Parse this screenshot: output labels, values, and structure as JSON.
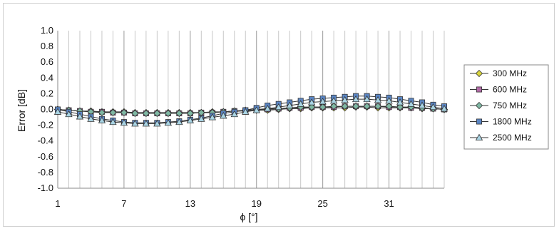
{
  "chart_data": {
    "type": "line",
    "title": "",
    "xlabel": "ϕ [°]",
    "ylabel": "Error [dB]",
    "x": [
      1,
      2,
      3,
      4,
      5,
      6,
      7,
      8,
      9,
      10,
      11,
      12,
      13,
      14,
      15,
      16,
      17,
      18,
      19,
      20,
      21,
      22,
      23,
      24,
      25,
      26,
      27,
      28,
      29,
      30,
      31,
      32,
      33,
      34,
      35,
      36
    ],
    "xlim": [
      1,
      36
    ],
    "xticks": [
      1,
      7,
      13,
      19,
      25,
      31
    ],
    "ylim": [
      -1.0,
      1.0
    ],
    "yticks": [
      1.0,
      0.8,
      0.6,
      0.4,
      0.2,
      0.0,
      -0.2,
      -0.4,
      -0.6,
      -0.8,
      -1.0
    ],
    "ytick_labels": [
      "1.0",
      "0.8",
      "0.6",
      "0.4",
      "0.2",
      "0.0",
      "-0.2",
      "-0.4",
      "-0.6",
      "-0.8",
      "-1.0"
    ],
    "grid": "vertical",
    "legend_position": "right",
    "series": [
      {
        "name": "300 MHz",
        "marker": "diamond",
        "color": "#d8d43c",
        "values": [
          0.0,
          -0.01,
          -0.02,
          -0.02,
          -0.03,
          -0.03,
          -0.03,
          -0.04,
          -0.04,
          -0.04,
          -0.04,
          -0.04,
          -0.04,
          -0.04,
          -0.03,
          -0.03,
          -0.02,
          -0.02,
          -0.01,
          -0.01,
          0.0,
          0.01,
          0.01,
          0.02,
          0.02,
          0.02,
          0.02,
          0.03,
          0.03,
          0.02,
          0.02,
          0.02,
          0.02,
          0.01,
          0.01,
          0.0
        ]
      },
      {
        "name": "600 MHz",
        "marker": "square",
        "color": "#b16aa6",
        "values": [
          0.0,
          -0.01,
          -0.02,
          -0.03,
          -0.03,
          -0.04,
          -0.04,
          -0.05,
          -0.05,
          -0.05,
          -0.05,
          -0.05,
          -0.05,
          -0.04,
          -0.04,
          -0.03,
          -0.02,
          -0.01,
          0.0,
          0.0,
          0.01,
          0.02,
          0.02,
          0.03,
          0.03,
          0.03,
          0.04,
          0.04,
          0.04,
          0.04,
          0.03,
          0.03,
          0.02,
          0.02,
          0.01,
          0.0
        ]
      },
      {
        "name": "750 MHz",
        "marker": "diamond",
        "color": "#7fb7a3",
        "values": [
          0.0,
          -0.01,
          -0.02,
          -0.03,
          -0.04,
          -0.04,
          -0.04,
          -0.05,
          -0.05,
          -0.05,
          -0.05,
          -0.05,
          -0.05,
          -0.04,
          -0.04,
          -0.03,
          -0.02,
          -0.01,
          0.0,
          0.01,
          0.01,
          0.02,
          0.03,
          0.03,
          0.03,
          0.04,
          0.04,
          0.04,
          0.04,
          0.04,
          0.04,
          0.03,
          0.03,
          0.02,
          0.01,
          0.0
        ]
      },
      {
        "name": "1800 MHz",
        "marker": "square",
        "color": "#5b86c4",
        "values": [
          0.0,
          -0.03,
          -0.06,
          -0.09,
          -0.12,
          -0.14,
          -0.16,
          -0.17,
          -0.17,
          -0.17,
          -0.16,
          -0.15,
          -0.13,
          -0.11,
          -0.08,
          -0.05,
          -0.03,
          -0.01,
          0.02,
          0.05,
          0.07,
          0.09,
          0.11,
          0.13,
          0.14,
          0.15,
          0.16,
          0.17,
          0.17,
          0.16,
          0.15,
          0.13,
          0.11,
          0.09,
          0.06,
          0.04
        ]
      },
      {
        "name": "2500 MHz",
        "marker": "triangle",
        "color": "#a9d4e4",
        "values": [
          -0.03,
          -0.06,
          -0.09,
          -0.12,
          -0.14,
          -0.16,
          -0.17,
          -0.18,
          -0.18,
          -0.18,
          -0.17,
          -0.16,
          -0.14,
          -0.12,
          -0.1,
          -0.08,
          -0.06,
          -0.03,
          -0.01,
          0.01,
          0.03,
          0.05,
          0.07,
          0.09,
          0.1,
          0.11,
          0.12,
          0.13,
          0.13,
          0.12,
          0.11,
          0.09,
          0.07,
          0.05,
          0.03,
          0.01
        ]
      }
    ]
  }
}
